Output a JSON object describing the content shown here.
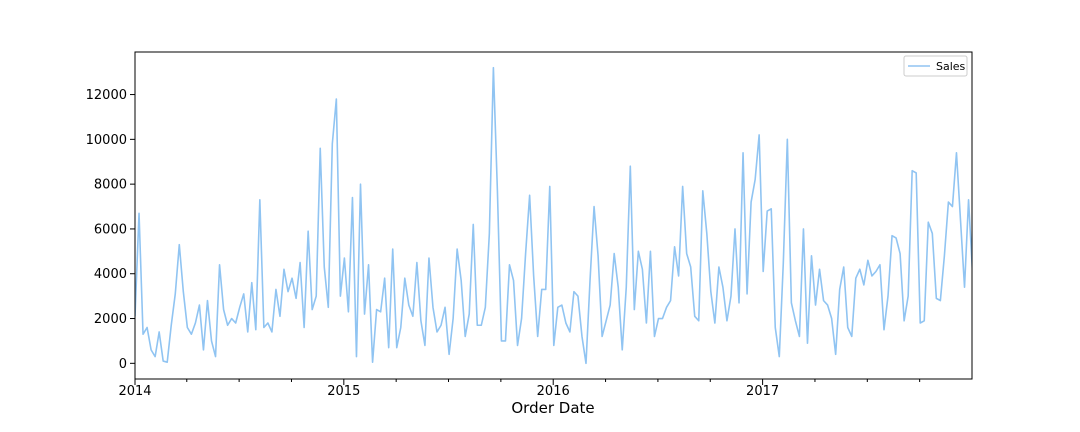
{
  "chart_data": {
    "type": "line",
    "xlabel": "Order Date",
    "ylabel": "",
    "ylim": [
      -700,
      13900
    ],
    "xlim": [
      "2014-01-06",
      "2017-12-31"
    ],
    "yticks": [
      0,
      2000,
      4000,
      6000,
      8000,
      10000,
      12000
    ],
    "xticks": [
      {
        "date": "2014-01-06",
        "label": "2014"
      },
      {
        "date": "2015-01-04",
        "label": "2015"
      },
      {
        "date": "2016-01-03",
        "label": "2016"
      },
      {
        "date": "2017-01-01",
        "label": "2017"
      }
    ],
    "minor_xticks": [
      "2014-04-06",
      "2014-07-06",
      "2014-10-05",
      "2015-04-05",
      "2015-07-05",
      "2015-10-04",
      "2016-04-03",
      "2016-07-03",
      "2016-10-02",
      "2017-04-02",
      "2017-07-02",
      "2017-10-01"
    ],
    "legend": {
      "position": "upper-right",
      "entries": [
        "Sales"
      ]
    },
    "series": [
      {
        "name": "Sales",
        "color": "#90c4f2",
        "x_start": "2014-01-06",
        "x_step_days": 7,
        "values": [
          2100,
          6700,
          1300,
          1600,
          600,
          300,
          1400,
          100,
          50,
          1700,
          3100,
          5300,
          3200,
          1600,
          1300,
          1800,
          2600,
          600,
          2800,
          1000,
          300,
          4400,
          2400,
          1700,
          2000,
          1800,
          2500,
          3100,
          1400,
          3600,
          1500,
          7300,
          1600,
          1800,
          1400,
          3300,
          2100,
          4200,
          3200,
          3800,
          2900,
          4500,
          1600,
          5900,
          2400,
          3000,
          9600,
          4300,
          2500,
          9800,
          11800,
          3000,
          4700,
          2300,
          7400,
          300,
          8000,
          2200,
          4400,
          50,
          2400,
          2300,
          3800,
          700,
          5100,
          700,
          1600,
          3800,
          2600,
          2100,
          4500,
          1900,
          800,
          4700,
          2500,
          1400,
          1700,
          2500,
          400,
          2000,
          5100,
          3700,
          1200,
          2200,
          6200,
          1700,
          1700,
          2500,
          5800,
          13200,
          7700,
          1000,
          1000,
          4400,
          3700,
          800,
          2000,
          4900,
          7500,
          3900,
          1200,
          3300,
          3300,
          7900,
          800,
          2500,
          2600,
          1800,
          1400,
          3200,
          3000,
          1200,
          0,
          3700,
          7000,
          4800,
          1200,
          1900,
          2600,
          4900,
          3400,
          600,
          3400,
          8800,
          2400,
          5000,
          4200,
          1800,
          5000,
          1200,
          2000,
          2000,
          2500,
          2800,
          5200,
          3900,
          7900,
          4900,
          4300,
          2100,
          1900,
          7700,
          5800,
          3200,
          1800,
          4300,
          3400,
          1900,
          3000,
          6000,
          2700,
          9400,
          3100,
          7200,
          8200,
          10200,
          4100,
          6800,
          6900,
          1600,
          300,
          4500,
          10000,
          2700,
          1900,
          1200,
          6000,
          900,
          4800,
          2600,
          4200,
          2800,
          2600,
          2000,
          400,
          3300,
          4300,
          1600,
          1200,
          3800,
          4200,
          3500,
          4600,
          3900,
          4100,
          4400,
          1500,
          3000,
          5700,
          5600,
          4900,
          1900,
          3000,
          8600,
          8500,
          1800,
          1900,
          6300,
          5800,
          2900,
          2800,
          4800,
          7200,
          7000,
          9400,
          6400,
          3400,
          7300,
          4000
        ]
      }
    ]
  }
}
